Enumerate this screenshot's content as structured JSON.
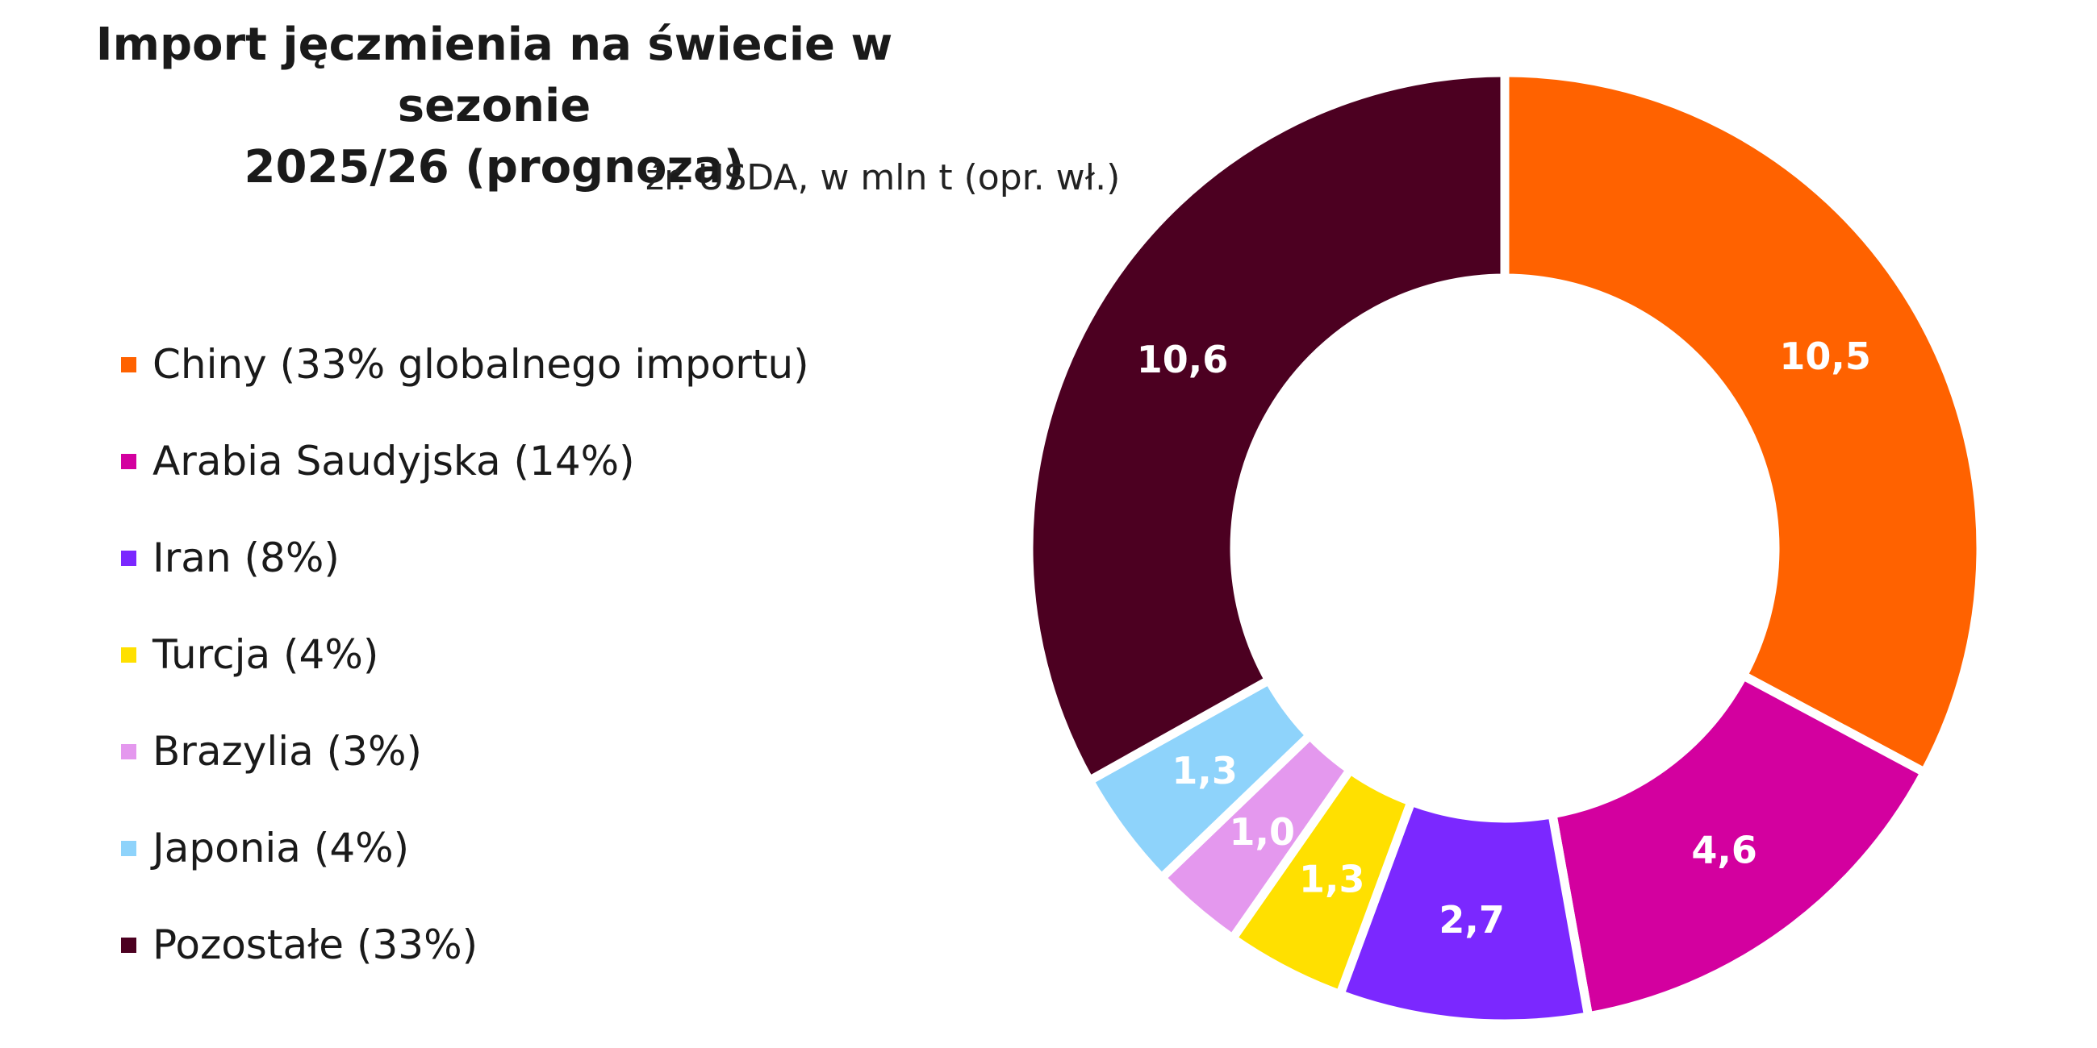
{
  "chart_data": {
    "type": "pie",
    "title_lines": [
      "Import jęczmienia na świecie w sezonie",
      "2025/26 (prognoza)"
    ],
    "subtitle": "źr. USDA, w mln t (opr. wł.)",
    "legend_position": "left",
    "slices": [
      {
        "name": "Chiny (33% globalnego importu)",
        "value": 10.5,
        "label": "10,5",
        "color": "#FF6200"
      },
      {
        "name": "Arabia Saudyjska (14%)",
        "value": 4.6,
        "label": "4,6",
        "color": "#D3009F"
      },
      {
        "name": "Iran (8%)",
        "value": 2.7,
        "label": "2,7",
        "color": "#7B28FF"
      },
      {
        "name": "Turcja (4%)",
        "value": 1.3,
        "label": "1,3",
        "color": "#FFE000"
      },
      {
        "name": "Brazylia (3%)",
        "value": 1.0,
        "label": "1,0",
        "color": "#E498EE"
      },
      {
        "name": "Japonia (4%)",
        "value": 1.3,
        "label": "1,3",
        "color": "#8ED3FB"
      },
      {
        "name": "Pozostałe (33%)",
        "value": 10.6,
        "label": "10,6",
        "color": "#4C0021"
      }
    ]
  }
}
